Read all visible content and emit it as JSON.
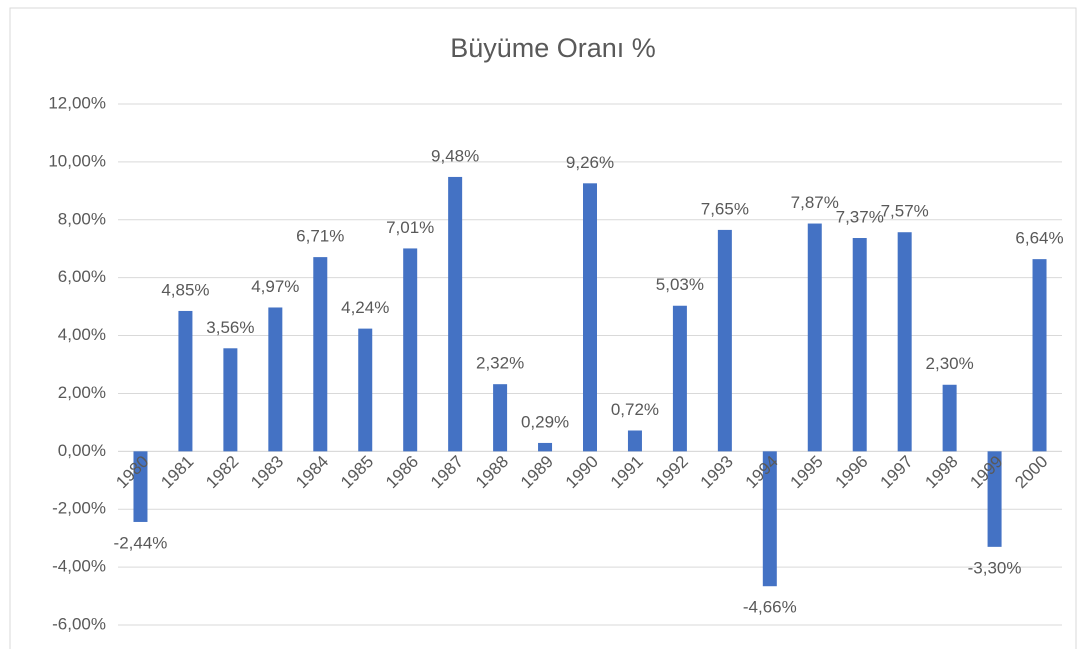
{
  "chart_data": {
    "type": "bar",
    "title": "Büyüme Oranı %",
    "categories": [
      "1980",
      "1981",
      "1982",
      "1983",
      "1984",
      "1985",
      "1986",
      "1987",
      "1988",
      "1989",
      "1990",
      "1991",
      "1992",
      "1993",
      "1994",
      "1995",
      "1996",
      "1997",
      "1998",
      "1999",
      "2000"
    ],
    "values": [
      -2.44,
      4.85,
      3.56,
      4.97,
      6.71,
      4.24,
      7.01,
      9.48,
      2.32,
      0.29,
      9.26,
      0.72,
      5.03,
      7.65,
      -4.66,
      7.87,
      7.37,
      7.57,
      2.3,
      -3.3,
      6.64
    ],
    "value_labels": [
      "-2,44%",
      "4,85%",
      "3,56%",
      "4,97%",
      "6,71%",
      "4,24%",
      "7,01%",
      "9,48%",
      "2,32%",
      "0,29%",
      "9,26%",
      "0,72%",
      "5,03%",
      "7,65%",
      "-4,66%",
      "7,87%",
      "7,37%",
      "7,57%",
      "2,30%",
      "-3,30%",
      "6,64%"
    ],
    "color": "#4472c4",
    "ylim": [
      -6,
      12
    ],
    "yticks": [
      {
        "value": -6,
        "label": "-6,00%"
      },
      {
        "value": -4,
        "label": "-4,00%"
      },
      {
        "value": -2,
        "label": "-2,00%"
      },
      {
        "value": 0,
        "label": "0,00%"
      },
      {
        "value": 2,
        "label": "2,00%"
      },
      {
        "value": 4,
        "label": "4,00%"
      },
      {
        "value": 6,
        "label": "6,00%"
      },
      {
        "value": 8,
        "label": "8,00%"
      },
      {
        "value": 10,
        "label": "10,00%"
      },
      {
        "value": 12,
        "label": "12,00%"
      }
    ],
    "grid": true
  }
}
